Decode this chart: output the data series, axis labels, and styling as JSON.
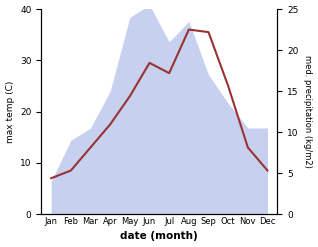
{
  "months": [
    "Jan",
    "Feb",
    "Mar",
    "Apr",
    "May",
    "Jun",
    "Jul",
    "Aug",
    "Sep",
    "Oct",
    "Nov",
    "Dec"
  ],
  "temperature": [
    7.0,
    8.5,
    13.0,
    17.5,
    23.0,
    29.5,
    27.5,
    36.0,
    35.5,
    25.0,
    13.0,
    8.5
  ],
  "precipitation": [
    4.0,
    9.0,
    10.5,
    15.0,
    24.0,
    25.5,
    21.0,
    23.5,
    17.0,
    13.5,
    10.5,
    10.5
  ],
  "temp_color": "#993333",
  "precip_fill_color": "#c8d0f0",
  "left_ylabel": "max temp (C)",
  "right_ylabel": "med. precipitation (kg/m2)",
  "xlabel": "date (month)",
  "left_ylim": [
    0,
    40
  ],
  "right_ylim": [
    0,
    25
  ],
  "left_yticks": [
    0,
    10,
    20,
    30,
    40
  ],
  "right_yticks": [
    0,
    5,
    10,
    15,
    20,
    25
  ],
  "bg_color": "#ffffff"
}
